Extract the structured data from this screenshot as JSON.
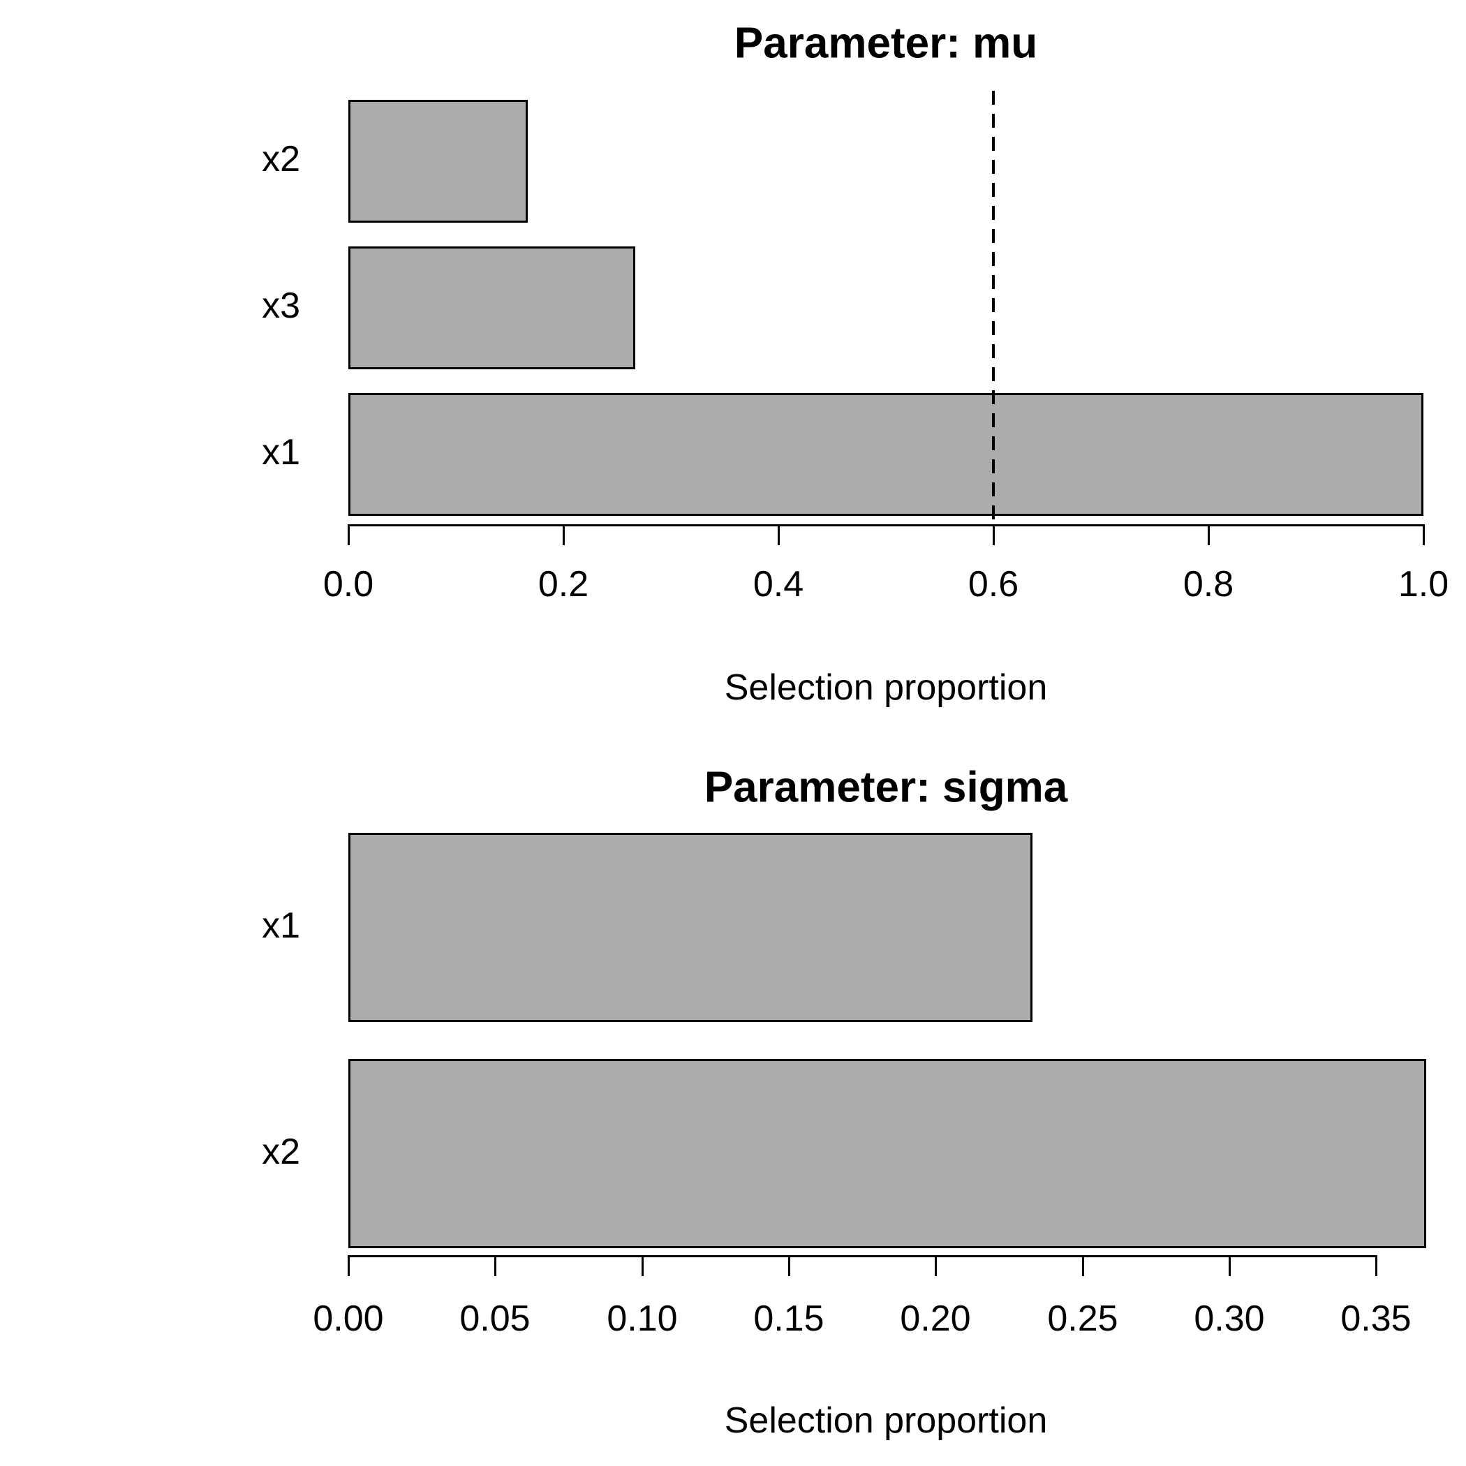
{
  "figure": {
    "background": "#ffffff",
    "bar_fill": "#acacac",
    "bar_border": "#000000",
    "text_color": "#000000"
  },
  "chart_data": [
    {
      "type": "bar",
      "orientation": "horizontal",
      "title": "Parameter: mu",
      "xlabel": "Selection proportion",
      "categories": [
        "x2",
        "x3",
        "x1"
      ],
      "values": [
        0.167,
        0.267,
        1.0
      ],
      "xlim": [
        0,
        1.0
      ],
      "xticks": [
        "0.0",
        "0.2",
        "0.4",
        "0.6",
        "0.8",
        "1.0"
      ],
      "xtick_values": [
        0,
        0.2,
        0.4,
        0.6,
        0.8,
        1.0
      ],
      "threshold_line": {
        "value": 0.6,
        "style": "dashed",
        "color": "#000000"
      },
      "grid": false,
      "legend": null
    },
    {
      "type": "bar",
      "orientation": "horizontal",
      "title": "Parameter: sigma",
      "xlabel": "Selection proportion",
      "categories": [
        "x1",
        "x2"
      ],
      "values": [
        0.233,
        0.367
      ],
      "xlim": [
        0,
        0.37
      ],
      "xticks": [
        "0.00",
        "0.05",
        "0.10",
        "0.15",
        "0.20",
        "0.25",
        "0.30",
        "0.35"
      ],
      "xtick_values": [
        0,
        0.05,
        0.1,
        0.15,
        0.2,
        0.25,
        0.3,
        0.35
      ],
      "threshold_line": null,
      "grid": false,
      "legend": null
    }
  ]
}
